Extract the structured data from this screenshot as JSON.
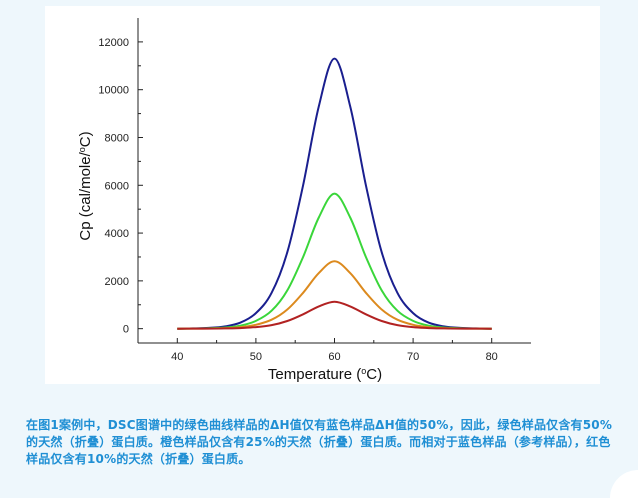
{
  "chart_data": {
    "type": "line",
    "xlabel": "Temperature (°C)",
    "ylabel": "Cp (cal/mole/°C)",
    "xlim": [
      35,
      85
    ],
    "ylim": [
      -600,
      13000
    ],
    "xticks": [
      40,
      50,
      60,
      70,
      80
    ],
    "yticks": [
      0,
      2000,
      4000,
      6000,
      8000,
      10000,
      12000
    ],
    "x": [
      40,
      42,
      44,
      46,
      48,
      50,
      52,
      54,
      56,
      58,
      60,
      62,
      64,
      66,
      68,
      70,
      72,
      74,
      76,
      78,
      80
    ],
    "series": [
      {
        "color": "#1a1f8f",
        "values": [
          0,
          10,
          30,
          90,
          250,
          650,
          1500,
          3200,
          6000,
          9300,
          11300,
          9300,
          6000,
          3200,
          1500,
          650,
          250,
          90,
          30,
          10,
          0
        ]
      },
      {
        "color": "#3ad63a",
        "values": [
          0,
          5,
          15,
          45,
          125,
          325,
          750,
          1600,
          3000,
          4650,
          5650,
          4650,
          3000,
          1600,
          750,
          325,
          125,
          45,
          15,
          5,
          0
        ]
      },
      {
        "color": "#dc8a1e",
        "values": [
          0,
          2,
          8,
          22,
          62,
          162,
          375,
          800,
          1500,
          2325,
          2825,
          2325,
          1500,
          800,
          375,
          162,
          62,
          22,
          8,
          2,
          0
        ]
      },
      {
        "color": "#b22222",
        "values": [
          0,
          1,
          3,
          9,
          25,
          65,
          150,
          320,
          600,
          930,
          1130,
          930,
          600,
          320,
          150,
          65,
          25,
          9,
          3,
          1,
          0
        ]
      }
    ]
  },
  "caption": "在图1案例中，DSC图谱中的绿色曲线样品的ΔH值仅有蓝色样品ΔH值的50%，因此，绿色样品仅含有50%的天然（折叠）蛋白质。橙色样品仅含有25%的天然（折叠）蛋白质。而相对于蓝色样品（参考样品），红色样品仅含有10%的天然（折叠）蛋白质。"
}
